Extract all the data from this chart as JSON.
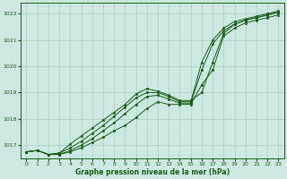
{
  "bg_color": "#cce8e0",
  "grid_color": "#aaccc4",
  "line_color": "#1a5c1a",
  "marker_color": "#1a5c1a",
  "xlabel": "Graphe pression niveau de la mer (hPa)",
  "ylim": [
    1016.5,
    1022.4
  ],
  "xlim": [
    -0.5,
    23.5
  ],
  "yticks": [
    1017,
    1018,
    1019,
    1020,
    1021,
    1022
  ],
  "xticks": [
    0,
    1,
    2,
    3,
    4,
    5,
    6,
    7,
    8,
    9,
    10,
    11,
    12,
    13,
    14,
    15,
    16,
    17,
    18,
    19,
    20,
    21,
    22,
    23
  ],
  "series": [
    [
      1016.75,
      1016.8,
      1016.65,
      1016.65,
      1016.75,
      1016.9,
      1017.1,
      1017.3,
      1017.55,
      1017.75,
      1018.05,
      1018.4,
      1018.65,
      1018.55,
      1018.55,
      1018.55,
      1019.3,
      1019.85,
      1021.15,
      1021.45,
      1021.65,
      1021.75,
      1021.85,
      1021.95
    ],
    [
      1016.75,
      1016.8,
      1016.65,
      1016.65,
      1016.8,
      1017.0,
      1017.25,
      1017.55,
      1017.85,
      1018.2,
      1018.55,
      1018.85,
      1018.9,
      1018.75,
      1018.6,
      1018.6,
      1019.85,
      1020.85,
      1021.35,
      1021.6,
      1021.75,
      1021.85,
      1021.95,
      1022.05
    ],
    [
      1016.75,
      1016.8,
      1016.65,
      1016.7,
      1016.9,
      1017.15,
      1017.45,
      1017.75,
      1018.1,
      1018.45,
      1018.8,
      1019.0,
      1019.0,
      1018.85,
      1018.65,
      1018.65,
      1020.15,
      1021.0,
      1021.45,
      1021.7,
      1021.8,
      1021.9,
      1022.0,
      1022.1
    ],
    [
      1016.75,
      1016.8,
      1016.65,
      1016.7,
      1017.05,
      1017.35,
      1017.65,
      1017.95,
      1018.25,
      1018.55,
      1018.95,
      1019.15,
      1019.05,
      1018.9,
      1018.7,
      1018.7,
      1019.0,
      1020.15,
      1021.25,
      1021.6,
      1021.75,
      1021.85,
      1021.95,
      1022.05
    ]
  ]
}
